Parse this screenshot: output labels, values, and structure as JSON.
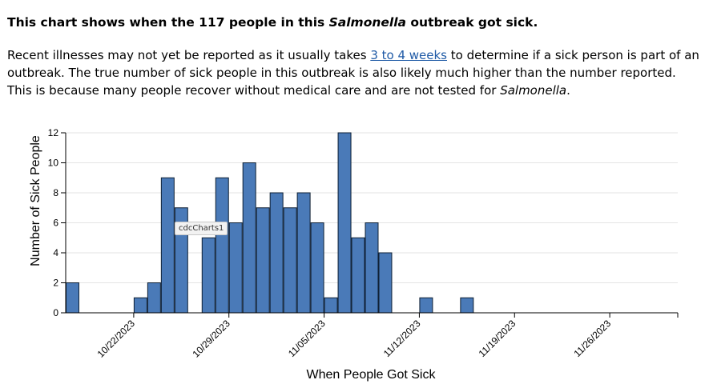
{
  "headline": {
    "pre": "This chart shows when the 117 people in this ",
    "em": "Salmonella",
    "post": " outbreak got sick."
  },
  "intro": {
    "p1": "Recent illnesses may not yet be reported as it usually takes ",
    "link": "3 to 4 weeks",
    "p2": " to determine if a sick person is part of an outbreak. The true number of sick people in this outbreak is also likely much higher than the number reported. This is because many people recover without medical care and are not tested for ",
    "em": "Salmonella",
    "p3": "."
  },
  "tooltip_label": "cdcCharts1",
  "chart_data": {
    "type": "bar",
    "xlabel": "When People Got Sick",
    "ylabel": "Number of Sick People",
    "ylim": [
      0,
      12
    ],
    "yticks": [
      0,
      2,
      4,
      6,
      8,
      10,
      12
    ],
    "grid": true,
    "bar_color": "#4a7ab8",
    "x_range": [
      "2023-10-17",
      "2023-12-01"
    ],
    "xticks": [
      "10/22/2023",
      "10/29/2023",
      "11/05/2023",
      "11/12/2023",
      "11/19/2023",
      "11/26/2023"
    ],
    "x": [
      "2023-10-17",
      "2023-10-22",
      "2023-10-23",
      "2023-10-24",
      "2023-10-25",
      "2023-10-27",
      "2023-10-28",
      "2023-10-29",
      "2023-10-30",
      "2023-10-31",
      "2023-11-01",
      "2023-11-02",
      "2023-11-03",
      "2023-11-04",
      "2023-11-05",
      "2023-11-06",
      "2023-11-07",
      "2023-11-08",
      "2023-11-09",
      "2023-11-12",
      "2023-11-15"
    ],
    "values": [
      2,
      1,
      2,
      9,
      7,
      5,
      9,
      6,
      10,
      7,
      8,
      7,
      8,
      6,
      1,
      12,
      5,
      6,
      4,
      1,
      1
    ]
  }
}
